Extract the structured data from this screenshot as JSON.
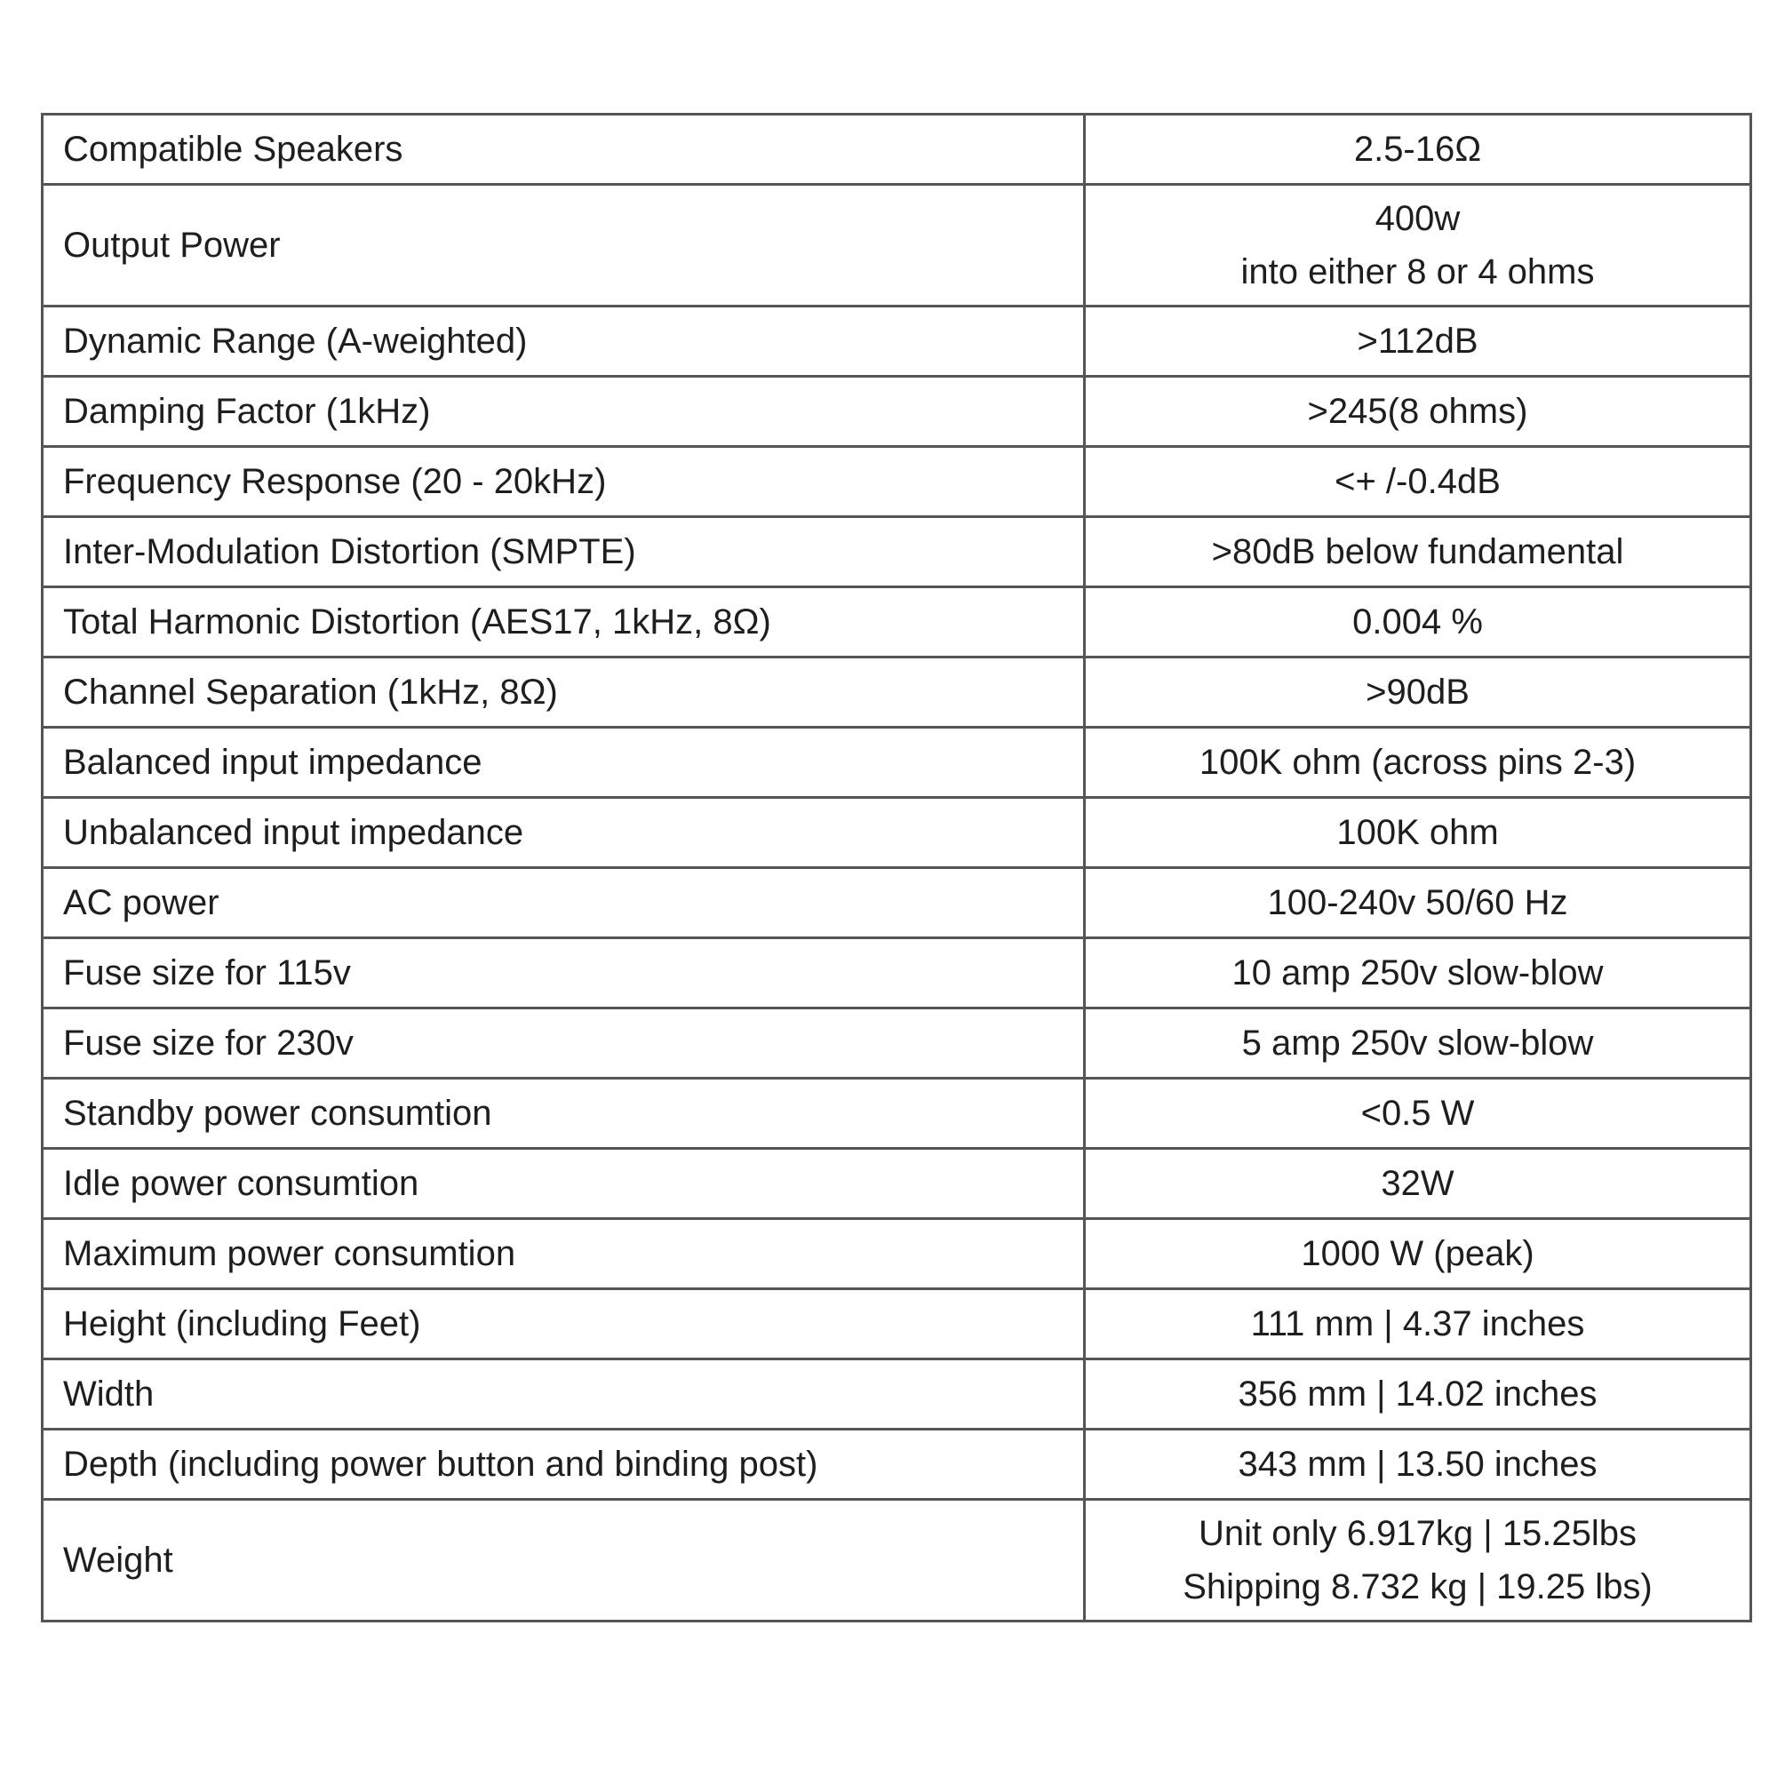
{
  "specs": [
    {
      "label": "Compatible Speakers",
      "value": [
        "2.5-16Ω"
      ]
    },
    {
      "label": "Output Power",
      "value": [
        "400w",
        "into either 8 or 4 ohms"
      ]
    },
    {
      "label": "Dynamic Range (A-weighted)",
      "value": [
        ">112dB"
      ]
    },
    {
      "label": "Damping Factor (1kHz)",
      "value": [
        ">245(8 ohms)"
      ]
    },
    {
      "label": "Frequency Response (20 - 20kHz)",
      "value": [
        "<+ /-0.4dB"
      ]
    },
    {
      "label": "Inter-Modulation Distortion (SMPTE)",
      "value": [
        ">80dB below fundamental"
      ]
    },
    {
      "label": "Total Harmonic Distortion (AES17, 1kHz, 8Ω)",
      "value": [
        "0.004 %"
      ]
    },
    {
      "label": "Channel Separation (1kHz, 8Ω)",
      "value": [
        ">90dB"
      ]
    },
    {
      "label": "Balanced input impedance",
      "value": [
        "100K ohm (across pins 2-3)"
      ]
    },
    {
      "label": "Unbalanced input impedance",
      "value": [
        "100K ohm"
      ]
    },
    {
      "label": "AC power",
      "value": [
        "100-240v 50/60 Hz"
      ]
    },
    {
      "label": "Fuse size for 115v",
      "value": [
        "10 amp 250v slow-blow"
      ]
    },
    {
      "label": "Fuse size for 230v",
      "value": [
        "5 amp 250v slow-blow"
      ]
    },
    {
      "label": "Standby power consumtion",
      "value": [
        "<0.5 W"
      ]
    },
    {
      "label": "Idle power consumtion",
      "value": [
        "32W"
      ]
    },
    {
      "label": "Maximum power consumtion",
      "value": [
        "1000 W (peak)"
      ]
    },
    {
      "label": "Height (including Feet)",
      "value": [
        "111 mm | 4.37 inches"
      ]
    },
    {
      "label": "Width",
      "value": [
        "356 mm | 14.02 inches"
      ]
    },
    {
      "label": "Depth (including power button and binding post)",
      "value": [
        "343 mm | 13.50 inches"
      ]
    },
    {
      "label": "Weight",
      "value": [
        "Unit only 6.917kg | 15.25lbs",
        "Shipping 8.732 kg | 19.25 lbs)"
      ]
    }
  ]
}
